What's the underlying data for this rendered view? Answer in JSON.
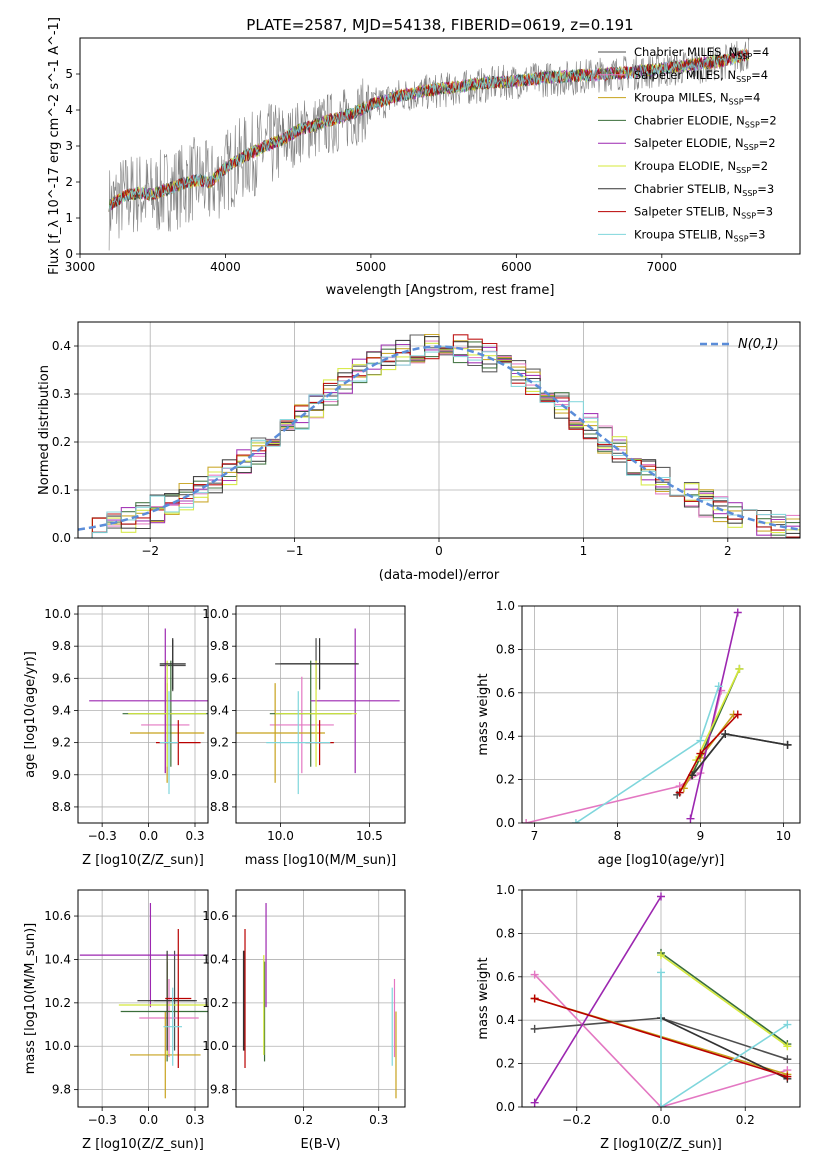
{
  "figure_title": "PLATE=2587, MJD=54138, FIBERID=0619, z=0.191",
  "series_styles": [
    {
      "name": "Chabrier MILES",
      "nssp": "4",
      "color": "#4e4e4e"
    },
    {
      "name": "Salpeter MILES",
      "nssp": "4",
      "color": "#e377c2"
    },
    {
      "name": "Kroupa MILES",
      "nssp": "4",
      "color": "#c7a21c"
    },
    {
      "name": "Chabrier ELODIE",
      "nssp": "2",
      "color": "#3a6e3a"
    },
    {
      "name": "Salpeter ELODIE",
      "nssp": "2",
      "color": "#9c27b0"
    },
    {
      "name": "Kroupa ELODIE",
      "nssp": "2",
      "color": "#d4e83a"
    },
    {
      "name": "Chabrier STELIB",
      "nssp": "3",
      "color": "#333333"
    },
    {
      "name": "Salpeter STELIB",
      "nssp": "3",
      "color": "#b80000"
    },
    {
      "name": "Kroupa STELIB",
      "nssp": "3",
      "color": "#7fd6dc"
    }
  ],
  "chart_data": [
    {
      "id": "spectrum",
      "type": "line",
      "xlabel": "wavelength [Angstrom, rest frame]",
      "ylabel": "Flux [f_λ 10^-17 erg cm^-2 s^-1 A^-1]",
      "xlim": [
        3000,
        7950
      ],
      "ylim": [
        0,
        6
      ],
      "xticks": [
        3000,
        4000,
        5000,
        6000,
        7000
      ],
      "yticks": [
        0,
        1,
        2,
        3,
        4,
        5
      ],
      "grid": false,
      "legend": "right",
      "data_color": "#808080",
      "data_x": [
        3200,
        3300,
        3400,
        3500,
        3600,
        3700,
        3800,
        3900,
        4000,
        4100,
        4200,
        4300,
        4400,
        4500,
        4600,
        4700,
        4800,
        4900,
        5000,
        5200,
        5400,
        5600,
        5800,
        6000,
        6200,
        6400,
        6600,
        6800,
        7000,
        7200,
        7400,
        7600
      ],
      "data_y": [
        1.3,
        1.6,
        1.7,
        1.6,
        1.8,
        1.9,
        2.1,
        1.9,
        2.3,
        2.6,
        2.8,
        3.0,
        3.1,
        3.4,
        3.5,
        3.6,
        3.7,
        3.9,
        4.1,
        4.4,
        4.5,
        4.6,
        4.7,
        4.8,
        4.85,
        4.9,
        5.0,
        5.05,
        5.1,
        5.2,
        5.3,
        5.6
      ],
      "model_x": [
        3200,
        3300,
        3400,
        3500,
        3600,
        3700,
        3800,
        3900,
        4000,
        4100,
        4200,
        4300,
        4400,
        4500,
        4600,
        4700,
        4800,
        4900,
        5000,
        5200,
        5400,
        5600,
        5800,
        6000,
        6200,
        6400,
        6600,
        6800,
        7000,
        7200,
        7400,
        7600
      ],
      "model_y": [
        1.35,
        1.6,
        1.7,
        1.65,
        1.8,
        1.95,
        2.05,
        2.0,
        2.4,
        2.65,
        2.85,
        3.05,
        3.2,
        3.45,
        3.55,
        3.7,
        3.8,
        3.95,
        4.15,
        4.4,
        4.55,
        4.65,
        4.75,
        4.8,
        4.9,
        4.95,
        5.0,
        5.05,
        5.15,
        5.25,
        5.35,
        5.55
      ]
    },
    {
      "id": "residuals",
      "type": "step",
      "xlabel": "(data-model)/error",
      "ylabel": "Normed distribution",
      "xlim": [
        -2.5,
        2.5
      ],
      "ylim": [
        0,
        0.45
      ],
      "xticks": [
        -2,
        -1,
        0,
        1,
        2
      ],
      "yticks": [
        0.0,
        0.1,
        0.2,
        0.3,
        0.4
      ],
      "grid": true,
      "legend": "top-right",
      "gaussian_label": "N(0,1)",
      "gaussian_color": "#5b8dd9"
    },
    {
      "id": "age_vs_Z",
      "type": "errorbar",
      "xlabel": "Z [log10(Z/Z_sun)]",
      "ylabel": "age [log10(age/yr)]",
      "xlim": [
        -0.38,
        0.32
      ],
      "ylim": [
        8.7,
        10.05
      ],
      "xticks": [
        -0.25,
        0.0,
        0.25
      ],
      "yticks": [
        8.8,
        9.0,
        9.2,
        9.4,
        9.6,
        9.8,
        10.0
      ],
      "grid": true,
      "points": [
        {
          "s": 0,
          "x": 0.13,
          "xe": 0.07,
          "y": 9.68,
          "ye": 0.16
        },
        {
          "s": 1,
          "x": 0.09,
          "xe": 0.13,
          "y": 9.31,
          "ye": 0.3
        },
        {
          "s": 2,
          "x": 0.1,
          "xe": 0.2,
          "y": 9.26,
          "ye": 0.31
        },
        {
          "s": 3,
          "x": 0.12,
          "xe": 0.26,
          "y": 9.38,
          "ye": 0.33
        },
        {
          "s": 4,
          "x": 0.09,
          "xe": 0.41,
          "y": 9.46,
          "ye": 0.45
        },
        {
          "s": 5,
          "x": 0.1,
          "xe": 0.21,
          "y": 9.38,
          "ye": 0.33
        },
        {
          "s": 6,
          "x": 0.13,
          "xe": 0.07,
          "y": 9.69,
          "ye": 0.16
        },
        {
          "s": 7,
          "x": 0.16,
          "xe": 0.12,
          "y": 9.2,
          "ye": 0.14
        },
        {
          "s": 8,
          "x": 0.11,
          "xe": 0.05,
          "y": 9.2,
          "ye": 0.32
        }
      ]
    },
    {
      "id": "age_vs_mass",
      "type": "errorbar",
      "xlabel": "mass [log10(M/M_sun)]",
      "ylabel": "",
      "xlim": [
        9.75,
        10.7
      ],
      "ylim": [
        8.7,
        10.05
      ],
      "xticks": [
        10.0,
        10.5
      ],
      "yticks": [
        8.8,
        9.0,
        9.2,
        9.4,
        9.6,
        9.8,
        10.0
      ],
      "grid": true,
      "points": [
        {
          "s": 0,
          "x": 10.2,
          "xe": 0.23,
          "y": 9.69,
          "ye": 0.16
        },
        {
          "s": 1,
          "x": 10.12,
          "xe": 0.18,
          "y": 9.31,
          "ye": 0.3
        },
        {
          "s": 2,
          "x": 9.97,
          "xe": 0.28,
          "y": 9.26,
          "ye": 0.31
        },
        {
          "s": 3,
          "x": 10.17,
          "xe": 0.23,
          "y": 9.38,
          "ye": 0.33
        },
        {
          "s": 4,
          "x": 10.42,
          "xe": 0.25,
          "y": 9.46,
          "ye": 0.45
        },
        {
          "s": 5,
          "x": 10.2,
          "xe": 0.23,
          "y": 9.38,
          "ye": 0.33
        },
        {
          "s": 6,
          "x": 10.22,
          "xe": 0.22,
          "y": 9.69,
          "ye": 0.16
        },
        {
          "s": 7,
          "x": 10.22,
          "xe": 0.08,
          "y": 9.2,
          "ye": 0.14
        },
        {
          "s": 8,
          "x": 10.1,
          "xe": 0.18,
          "y": 9.2,
          "ye": 0.32
        }
      ]
    },
    {
      "id": "weight_vs_age",
      "type": "line",
      "xlabel": "age [log10(age/yr)]",
      "ylabel": "mass weight",
      "xlim": [
        6.85,
        10.2
      ],
      "ylim": [
        0,
        1.0
      ],
      "xticks": [
        7,
        8,
        9,
        10
      ],
      "yticks": [
        0.0,
        0.2,
        0.4,
        0.6,
        0.8,
        1.0
      ],
      "grid": true,
      "lines": [
        {
          "s": 0,
          "x": [
            8.72,
            9.3,
            10.05
          ],
          "y": [
            0.13,
            0.41,
            0.36
          ]
        },
        {
          "s": 1,
          "x": [
            6.9,
            8.75,
            9.0,
            9.25
          ],
          "y": [
            0.0,
            0.17,
            0.23,
            0.61
          ]
        },
        {
          "s": 2,
          "x": [
            8.8,
            9.0,
            9.4
          ],
          "y": [
            0.16,
            0.3,
            0.5
          ]
        },
        {
          "s": 3,
          "x": [
            8.9,
            9.47
          ],
          "y": [
            0.22,
            0.71
          ]
        },
        {
          "s": 4,
          "x": [
            8.88,
            9.45
          ],
          "y": [
            0.02,
            0.97
          ]
        },
        {
          "s": 5,
          "x": [
            8.95,
            9.47
          ],
          "y": [
            0.29,
            0.71
          ]
        },
        {
          "s": 6,
          "x": [
            8.9,
            9.3,
            10.05
          ],
          "y": [
            0.22,
            0.41,
            0.36
          ]
        },
        {
          "s": 7,
          "x": [
            8.75,
            9.0,
            9.45
          ],
          "y": [
            0.14,
            0.32,
            0.5
          ]
        },
        {
          "s": 8,
          "x": [
            7.5,
            9.0,
            9.22
          ],
          "y": [
            0.0,
            0.38,
            0.63
          ]
        }
      ]
    },
    {
      "id": "mass_vs_Z",
      "type": "errorbar",
      "xlabel": "Z [log10(Z/Z_sun)]",
      "ylabel": "mass [log10(M/M_sun)]",
      "xlim": [
        -0.38,
        0.32
      ],
      "ylim": [
        9.72,
        10.72
      ],
      "xticks": [
        -0.25,
        0.0,
        0.25
      ],
      "yticks": [
        9.8,
        10.0,
        10.2,
        10.4,
        10.6
      ],
      "grid": true,
      "points": [
        {
          "s": 0,
          "x": 0.14,
          "xe": 0.11,
          "y": 10.21,
          "ye": 0.23
        },
        {
          "s": 1,
          "x": 0.11,
          "xe": 0.16,
          "y": 10.13,
          "ye": 0.18
        },
        {
          "s": 2,
          "x": 0.09,
          "xe": 0.19,
          "y": 9.96,
          "ye": 0.2
        },
        {
          "s": 3,
          "x": 0.1,
          "xe": 0.25,
          "y": 10.16,
          "ye": 0.23
        },
        {
          "s": 4,
          "x": 0.01,
          "xe": 0.38,
          "y": 10.42,
          "ye": 0.24
        },
        {
          "s": 5,
          "x": 0.1,
          "xe": 0.26,
          "y": 10.19,
          "ye": 0.23
        },
        {
          "s": 6,
          "x": 0.1,
          "xe": 0.16,
          "y": 10.21,
          "ye": 0.23
        },
        {
          "s": 7,
          "x": 0.16,
          "xe": 0.07,
          "y": 10.22,
          "ye": 0.32
        },
        {
          "s": 8,
          "x": 0.13,
          "xe": 0.05,
          "y": 10.09,
          "ye": 0.18
        }
      ]
    },
    {
      "id": "mass_vs_ebv",
      "type": "errorbar",
      "xlabel": "E(B-V)",
      "ylabel": "",
      "xlim": [
        0.11,
        0.335
      ],
      "ylim": [
        9.72,
        10.72
      ],
      "xticks": [
        0.2,
        0.3
      ],
      "yticks": [
        9.8,
        10.0,
        10.2,
        10.4,
        10.6
      ],
      "grid": true,
      "points": [
        {
          "s": 0,
          "x": 0.121,
          "xe": 0.0,
          "y": 10.21,
          "ye": 0.23
        },
        {
          "s": 1,
          "x": 0.321,
          "xe": 0.0,
          "y": 10.13,
          "ye": 0.18
        },
        {
          "s": 2,
          "x": 0.323,
          "xe": 0.0,
          "y": 9.96,
          "ye": 0.2
        },
        {
          "s": 3,
          "x": 0.148,
          "xe": 0.0,
          "y": 10.16,
          "ye": 0.23
        },
        {
          "s": 4,
          "x": 0.15,
          "xe": 0.0,
          "y": 10.42,
          "ye": 0.24
        },
        {
          "s": 5,
          "x": 0.147,
          "xe": 0.0,
          "y": 10.19,
          "ye": 0.23
        },
        {
          "s": 6,
          "x": 0.12,
          "xe": 0.0,
          "y": 10.21,
          "ye": 0.23
        },
        {
          "s": 7,
          "x": 0.122,
          "xe": 0.0,
          "y": 10.22,
          "ye": 0.32
        },
        {
          "s": 8,
          "x": 0.318,
          "xe": 0.0,
          "y": 10.09,
          "ye": 0.18
        }
      ]
    },
    {
      "id": "weight_vs_Z",
      "type": "line",
      "xlabel": "Z [log10(Z/Z_sun)]",
      "ylabel": "mass weight",
      "xlim": [
        -0.33,
        0.33
      ],
      "ylim": [
        0,
        1.0
      ],
      "xticks": [
        -0.2,
        0.0,
        0.2
      ],
      "yticks": [
        0.0,
        0.2,
        0.4,
        0.6,
        0.8,
        1.0
      ],
      "grid": true,
      "lines": [
        {
          "s": 0,
          "x": [
            -0.3,
            0.0,
            0.3
          ],
          "y": [
            0.36,
            0.41,
            0.22
          ]
        },
        {
          "s": 1,
          "x": [
            -0.3,
            0.0,
            0.3
          ],
          "y": [
            0.61,
            0.0,
            0.17
          ]
        },
        {
          "s": 2,
          "x": [
            -0.3,
            0.3
          ],
          "y": [
            0.5,
            0.15
          ]
        },
        {
          "s": 3,
          "x": [
            0.0,
            0.3
          ],
          "y": [
            0.71,
            0.29
          ]
        },
        {
          "s": 4,
          "x": [
            -0.3,
            0.0
          ],
          "y": [
            0.02,
            0.97
          ]
        },
        {
          "s": 5,
          "x": [
            0.0,
            0.3
          ],
          "y": [
            0.7,
            0.28
          ]
        },
        {
          "s": 6,
          "x": [
            0.0,
            0.3
          ],
          "y": [
            0.41,
            0.13
          ]
        },
        {
          "s": 7,
          "x": [
            -0.3,
            0.3
          ],
          "y": [
            0.5,
            0.14
          ]
        },
        {
          "s": 8,
          "x": [
            0.0,
            0.0,
            0.3
          ],
          "y": [
            0.62,
            0.0,
            0.38
          ]
        }
      ]
    }
  ]
}
